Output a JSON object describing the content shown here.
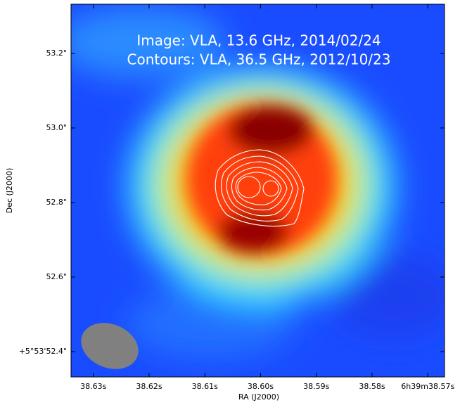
{
  "chart_data": {
    "type": "image",
    "title": [
      "Image: VLA, 13.6 GHz, 2014/02/24",
      "Contours: VLA, 36.5 GHz, 2012/10/23"
    ],
    "xlabel": "RA (J2000)",
    "ylabel": "Dec (J2000)",
    "xlim": [
      38.634,
      38.567
    ],
    "ylim": [
      52.332,
      53.332
    ],
    "xticks": [
      {
        "value": 38.63,
        "label": "38.63s"
      },
      {
        "value": 38.62,
        "label": "38.62s"
      },
      {
        "value": 38.61,
        "label": "38.61s"
      },
      {
        "value": 38.6,
        "label": "38.60s"
      },
      {
        "value": 38.59,
        "label": "38.59s"
      },
      {
        "value": 38.58,
        "label": "38.58s"
      },
      {
        "value": 38.57,
        "label": "6h39m38.57s"
      }
    ],
    "yticks": [
      {
        "value": 52.4,
        "label": "+5°53'52.4\""
      },
      {
        "value": 52.6,
        "label": "52.6\""
      },
      {
        "value": 52.8,
        "label": "52.8\""
      },
      {
        "value": 53.0,
        "label": "53.0\""
      },
      {
        "value": 53.2,
        "label": "53.2\""
      }
    ]
  }
}
